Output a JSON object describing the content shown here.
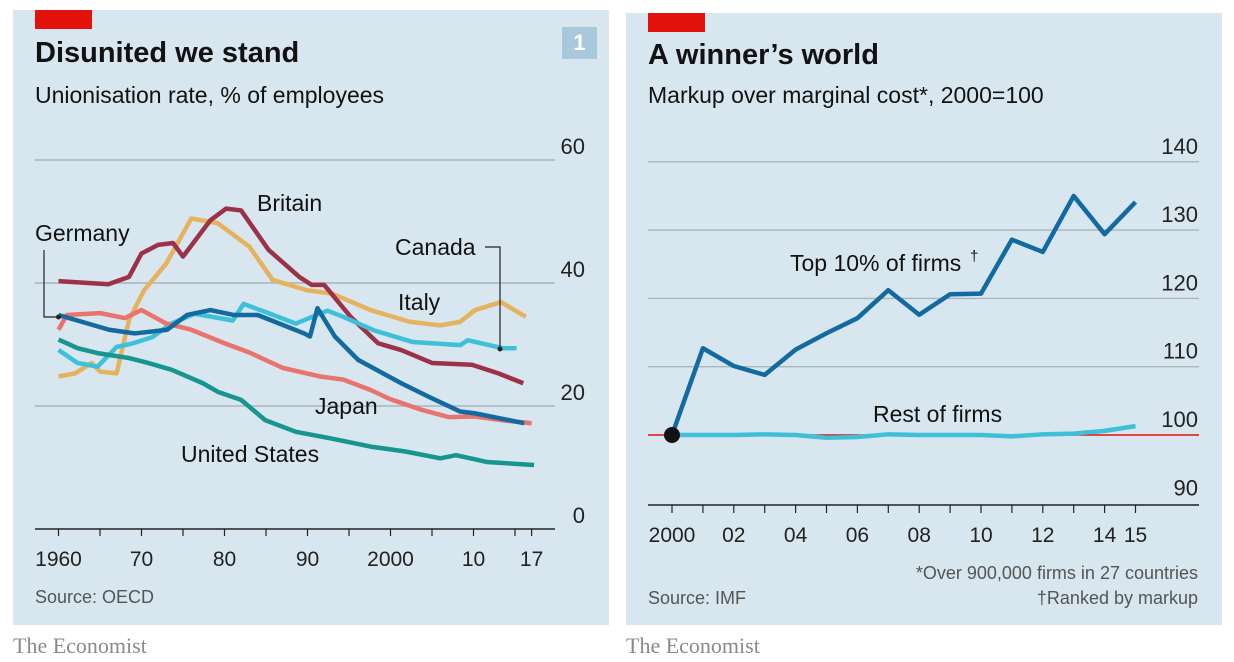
{
  "brand": "The Economist",
  "chart_data": [
    {
      "type": "line",
      "title": "Disunited we stand",
      "subtitle": "Unionisation rate, % of employees",
      "badge": "1",
      "source": "Source: OECD",
      "xlim": [
        1960,
        2017
      ],
      "ylim": [
        0,
        60
      ],
      "yticks": [
        "0",
        "20",
        "40",
        "60"
      ],
      "ytick_values": [
        0,
        20,
        40,
        60
      ],
      "xticks": [
        "1960",
        "70",
        "80",
        "90",
        "2000",
        "10",
        "17"
      ],
      "xtick_values": [
        1960,
        1970,
        1980,
        1990,
        2000,
        2010,
        2017
      ],
      "grid": true,
      "series": [
        {
          "name": "Italy",
          "color": "#e5b35f",
          "x": [
            1960,
            1962,
            1964,
            1965,
            1967,
            1968.5,
            1970.3,
            1973,
            1976,
            1979.2,
            1983,
            1985.8,
            1990,
            1992.9,
            1997.6,
            2002.3,
            2006,
            2008.4,
            2010.2,
            2013.3,
            2016.3
          ],
          "y": [
            24.8,
            25.3,
            27,
            25.6,
            25.3,
            34,
            38.8,
            43.2,
            50.5,
            49.7,
            45.9,
            40.5,
            38.8,
            38.3,
            35.6,
            33.7,
            33.1,
            33.7,
            35.6,
            36.9,
            34.5
          ]
        },
        {
          "name": "Britain",
          "color": "#9c3248",
          "x": [
            1960,
            1966,
            1968.5,
            1970,
            1972,
            1973.8,
            1975,
            1978.3,
            1980.2,
            1982,
            1985.3,
            1989,
            1990.5,
            1992,
            1995.2,
            1998.5,
            2001.3,
            2005,
            2009.8,
            2013,
            2016
          ],
          "y": [
            40.3,
            39.8,
            41,
            44.8,
            46.2,
            46.5,
            44.3,
            50.2,
            52.1,
            51.8,
            45.4,
            41,
            39.7,
            39.7,
            34.5,
            30.2,
            29.1,
            27,
            26.7,
            25.3,
            23.7
          ]
        },
        {
          "name": "Canada",
          "color": "#3ec1d8",
          "x": [
            1960,
            1962.3,
            1964.7,
            1967,
            1969,
            1971.3,
            1973.6,
            1976.4,
            1981,
            1982.3,
            1984.9,
            1988.6,
            1992.4,
            1994.3,
            1998,
            2002.7,
            2008.4,
            2009.3,
            2013.5,
            2015.2
          ],
          "y": [
            29.1,
            27,
            26.4,
            29.6,
            30.2,
            31.2,
            33.4,
            35,
            33.9,
            36.6,
            35.3,
            33.4,
            35.5,
            34.5,
            32.3,
            30.4,
            29.9,
            30.7,
            29.4,
            29.4
          ]
        },
        {
          "name": "Japan",
          "color": "#e9736d",
          "x": [
            1960,
            1961,
            1965,
            1968,
            1970,
            1973,
            1976,
            1980,
            1983,
            1987,
            1991.5,
            1994.3,
            1997.6,
            2000,
            2003.7,
            2007,
            2010,
            2014,
            2017
          ],
          "y": [
            32.4,
            34.8,
            35.1,
            34.3,
            35.6,
            33.4,
            32.4,
            30.2,
            28.7,
            26.2,
            24.8,
            24.3,
            22.6,
            21.1,
            19.4,
            18.2,
            18.3,
            17.6,
            17.2
          ]
        },
        {
          "name": "Germany",
          "color": "#126aa0",
          "x": [
            1960,
            1966.1,
            1969.2,
            1973.1,
            1975.5,
            1978.3,
            1981.1,
            1984,
            1989.6,
            1990.3,
            1991.2,
            1993.3,
            1996.1,
            2001.3,
            2004.6,
            2008.4,
            2010.2,
            2016.1
          ],
          "y": [
            34.8,
            32.4,
            31.8,
            32.4,
            34.8,
            35.6,
            34.8,
            34.8,
            31.8,
            31.3,
            35.9,
            31.3,
            27.5,
            23.7,
            21.5,
            19.1,
            18.8,
            17.2
          ]
        },
        {
          "name": "United States",
          "color": "#17958f",
          "x": [
            1960,
            1962.3,
            1964.7,
            1968.5,
            1970.8,
            1973.6,
            1977.4,
            1979.2,
            1982,
            1984.9,
            1988.6,
            1992.9,
            1997.6,
            2001.8,
            2006,
            2007.9,
            2011.6,
            2017.3
          ],
          "y": [
            30.8,
            29.4,
            28.6,
            27.8,
            27,
            25.9,
            23.7,
            22.3,
            21,
            17.7,
            15.8,
            14.7,
            13.4,
            12.6,
            11.5,
            12,
            10.9,
            10.4
          ]
        }
      ]
    },
    {
      "type": "line",
      "title": "A winner’s world",
      "subtitle": "Markup over marginal cost*, 2000=100",
      "source": "Source: IMF",
      "footnotes": [
        "*Over 900,000 firms in 27 countries",
        "†Ranked by markup"
      ],
      "xlim": [
        2000,
        2015
      ],
      "ylim": [
        90,
        140
      ],
      "yticks": [
        "90",
        "100",
        "110",
        "120",
        "130",
        "140"
      ],
      "ytick_values": [
        90,
        100,
        110,
        120,
        130,
        140
      ],
      "xticks": [
        "2000",
        "02",
        "04",
        "06",
        "08",
        "10",
        "12",
        "14",
        "15"
      ],
      "xtick_values": [
        2000,
        2002,
        2004,
        2006,
        2008,
        2010,
        2012,
        2014,
        2015
      ],
      "grid": true,
      "baseline_value": 100,
      "baseline_color": "#e3120b",
      "series": [
        {
          "name": "Top 10% of firms",
          "label": "Top 10% of firms",
          "label_mark": "†",
          "color": "#126aa0",
          "x": [
            2000,
            2001,
            2002,
            2003,
            2004,
            2005,
            2006,
            2007,
            2008,
            2009,
            2010,
            2011,
            2012,
            2013,
            2014,
            2015
          ],
          "y": [
            100,
            112.7,
            110.1,
            108.8,
            112.5,
            114.9,
            117.1,
            121.2,
            117.6,
            120.6,
            120.7,
            128.6,
            126.8,
            135,
            129.4,
            134.1
          ]
        },
        {
          "name": "Rest of firms",
          "label": "Rest of firms",
          "color": "#3ec1d8",
          "x": [
            2000,
            2001,
            2002,
            2003,
            2004,
            2005,
            2006,
            2007,
            2008,
            2009,
            2010,
            2011,
            2012,
            2013,
            2014,
            2015
          ],
          "y": [
            100,
            100,
            100,
            100.1,
            100,
            99.6,
            99.7,
            100.1,
            100,
            100,
            100,
            99.8,
            100.1,
            100.2,
            100.6,
            101.3
          ]
        }
      ]
    }
  ]
}
